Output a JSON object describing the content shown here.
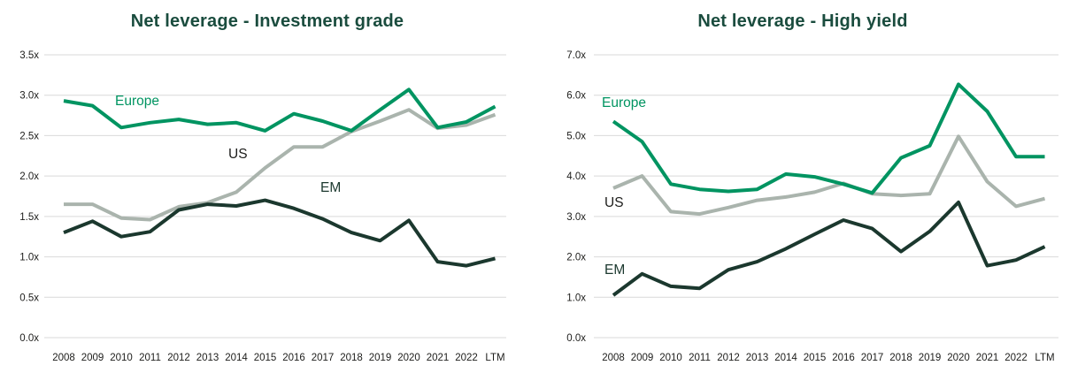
{
  "colors": {
    "title": "#1a4c3e",
    "europe": "#009461",
    "us": "#aab4ad",
    "us_label": "#1d1d1b",
    "em": "#1b382e",
    "gridline": "#d9d9d9",
    "axis_text": "#1d1d1b",
    "background": "#ffffff"
  },
  "chart_data": [
    {
      "type": "line",
      "title": "Net leverage - Investment grade",
      "xlabel": "",
      "ylabel": "",
      "ylim": [
        0,
        3.5
      ],
      "grid": true,
      "legend_position": "inline-labels-near-lines",
      "y_ticks": [
        "0.0x",
        "0.5x",
        "1.0x",
        "1.5x",
        "2.0x",
        "2.5x",
        "3.0x",
        "3.5x"
      ],
      "categories": [
        "2008",
        "2009",
        "2010",
        "2011",
        "2012",
        "2013",
        "2014",
        "2015",
        "2016",
        "2017",
        "2018",
        "2019",
        "2020",
        "2021",
        "2022",
        "LTM"
      ],
      "series": [
        {
          "name": "Europe",
          "values": [
            2.93,
            2.87,
            2.6,
            2.66,
            2.7,
            2.64,
            2.66,
            2.56,
            2.77,
            2.68,
            2.56,
            2.82,
            3.07,
            2.6,
            2.67,
            2.86
          ]
        },
        {
          "name": "US",
          "values": [
            1.65,
            1.65,
            1.48,
            1.46,
            1.62,
            1.67,
            1.8,
            2.1,
            2.36,
            2.36,
            2.55,
            2.68,
            2.82,
            2.59,
            2.63,
            2.76
          ]
        },
        {
          "name": "EM",
          "values": [
            1.3,
            1.44,
            1.25,
            1.31,
            1.58,
            1.65,
            1.63,
            1.7,
            1.6,
            1.47,
            1.3,
            1.2,
            1.45,
            0.94,
            0.89,
            0.98
          ]
        }
      ]
    },
    {
      "type": "line",
      "title": "Net leverage - High yield",
      "xlabel": "",
      "ylabel": "",
      "ylim": [
        0,
        7.0
      ],
      "grid": true,
      "legend_position": "inline-labels-near-lines",
      "y_ticks": [
        "0.0x",
        "1.0x",
        "2.0x",
        "3.0x",
        "4.0x",
        "5.0x",
        "6.0x",
        "7.0x"
      ],
      "categories": [
        "2008",
        "2009",
        "2010",
        "2011",
        "2012",
        "2013",
        "2014",
        "2015",
        "2016",
        "2017",
        "2018",
        "2019",
        "2020",
        "2021",
        "2022",
        "LTM"
      ],
      "series": [
        {
          "name": "Europe",
          "values": [
            5.35,
            4.85,
            3.8,
            3.67,
            3.62,
            3.67,
            4.05,
            3.98,
            3.8,
            3.58,
            4.45,
            4.75,
            6.27,
            5.6,
            4.48,
            4.48
          ]
        },
        {
          "name": "US",
          "values": [
            3.7,
            4.0,
            3.12,
            3.06,
            3.22,
            3.4,
            3.48,
            3.6,
            3.82,
            3.56,
            3.52,
            3.56,
            4.98,
            3.86,
            3.25,
            3.44
          ]
        },
        {
          "name": "EM",
          "values": [
            1.05,
            1.58,
            1.27,
            1.22,
            1.68,
            1.88,
            2.2,
            2.56,
            2.91,
            2.7,
            2.13,
            2.63,
            3.35,
            1.78,
            1.92,
            2.25
          ]
        }
      ]
    }
  ]
}
